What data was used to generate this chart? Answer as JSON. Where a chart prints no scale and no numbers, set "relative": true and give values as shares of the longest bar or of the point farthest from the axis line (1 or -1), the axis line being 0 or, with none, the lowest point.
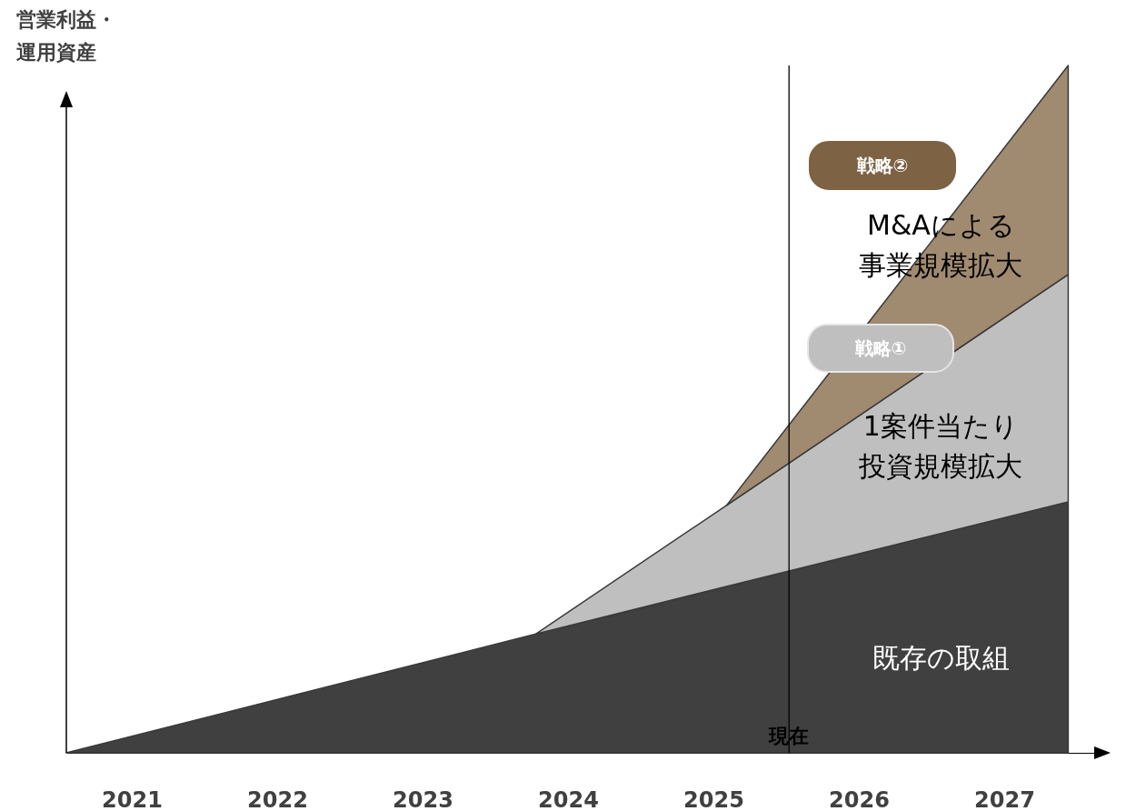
{
  "chart_data": {
    "type": "area",
    "relative": true,
    "stacked": true,
    "ylabel": "営業利益・運用資産",
    "x": [
      2020.55,
      2023.78,
      2025.09,
      2027.44
    ],
    "xlim": [
      2020.55,
      2027.625
    ],
    "xticks": [
      2021,
      2022,
      2023,
      2024,
      2025,
      2026,
      2027
    ],
    "series": [
      {
        "name": "既存の取組",
        "color": "#404040",
        "values": [
          0,
          0.173,
          0.242,
          0.365
        ]
      },
      {
        "name": "1案件当たり投資規模拡大",
        "color": "#bfbfbf",
        "values": [
          null,
          0,
          0.118,
          0.331
        ]
      },
      {
        "name": "M&Aによる事業規模拡大",
        "color": "#a08a70",
        "values": [
          null,
          null,
          0,
          0.304
        ]
      }
    ],
    "annotations": [
      "戦略②",
      "戦略①"
    ],
    "ref_lines": [
      {
        "axis": "x",
        "value": 2025.52,
        "label": "現在"
      }
    ]
  }
}
